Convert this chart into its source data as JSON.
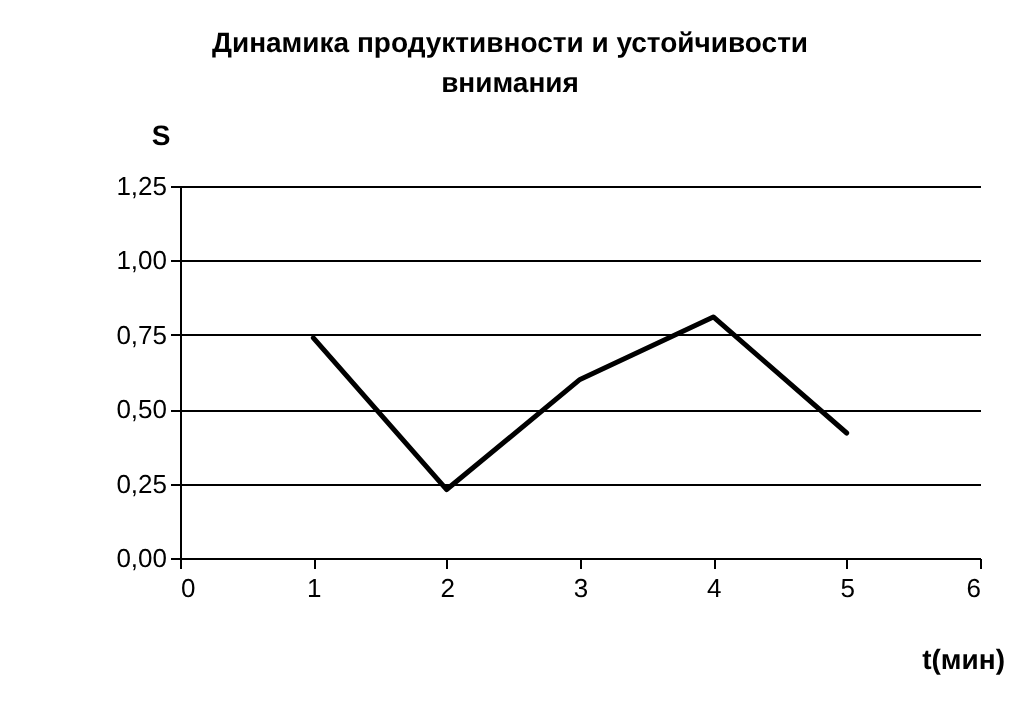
{
  "chart_data": {
    "type": "line",
    "title": "Динамика продуктивности и устойчивости внимания",
    "xlabel": "t(мин)",
    "ylabel": "S",
    "x": [
      1,
      2,
      3,
      4,
      5
    ],
    "series": [
      {
        "color": "#000000",
        "values": [
          0.74,
          0.23,
          0.6,
          0.81,
          0.42
        ]
      }
    ],
    "xlim": [
      0,
      6
    ],
    "xticks": [
      0,
      1,
      2,
      3,
      4,
      5,
      6
    ],
    "ylim": [
      0,
      1.25
    ],
    "yticks": [
      {
        "value": 0,
        "label": "0,00"
      },
      {
        "value": 0.25,
        "label": "0,25"
      },
      {
        "value": 0.5,
        "label": "0,50"
      },
      {
        "value": 0.75,
        "label": "0,75"
      },
      {
        "value": 1,
        "label": "1,00"
      },
      {
        "value": 1.25,
        "label": "1,25"
      }
    ],
    "grid": "y",
    "legend": false,
    "marker": "none",
    "line_style": "solid"
  }
}
